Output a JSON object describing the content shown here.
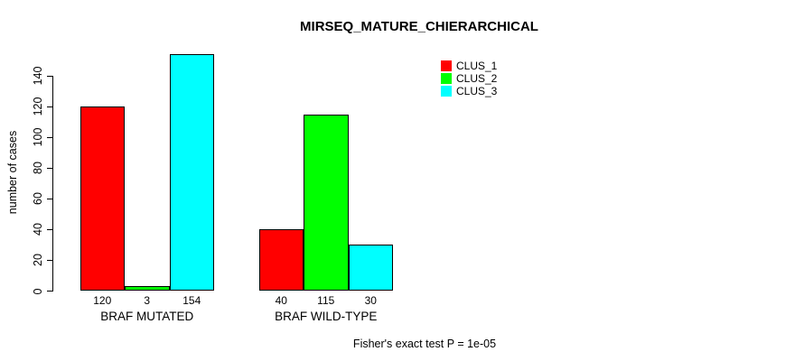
{
  "title": "MIRSEQ_MATURE_CHIERARCHICAL",
  "footer_note": "Fisher's exact test P = 1e-05",
  "chart_data": {
    "type": "bar",
    "title": "MIRSEQ_MATURE_CHIERARCHICAL",
    "xlabel": "",
    "ylabel": "number of cases",
    "categories": [
      "BRAF MUTATED",
      "BRAF WILD-TYPE"
    ],
    "series": [
      {
        "name": "CLUS_1",
        "color": "#ff0000",
        "values": [
          120,
          40
        ]
      },
      {
        "name": "CLUS_2",
        "color": "#00ff00",
        "values": [
          3,
          115
        ]
      },
      {
        "name": "CLUS_3",
        "color": "#00ffff",
        "values": [
          154,
          30
        ]
      }
    ],
    "bar_value_labels": [
      [
        120,
        3,
        154
      ],
      [
        40,
        115,
        30
      ]
    ],
    "yticks": [
      0,
      20,
      40,
      60,
      80,
      100,
      120,
      140
    ],
    "ylim": [
      0,
      154
    ],
    "grid": false,
    "legend_position": "top-right",
    "legend_entries": [
      "CLUS_1",
      "CLUS_2",
      "CLUS_3"
    ],
    "annotation": "Fisher's exact test P = 1e-05"
  }
}
